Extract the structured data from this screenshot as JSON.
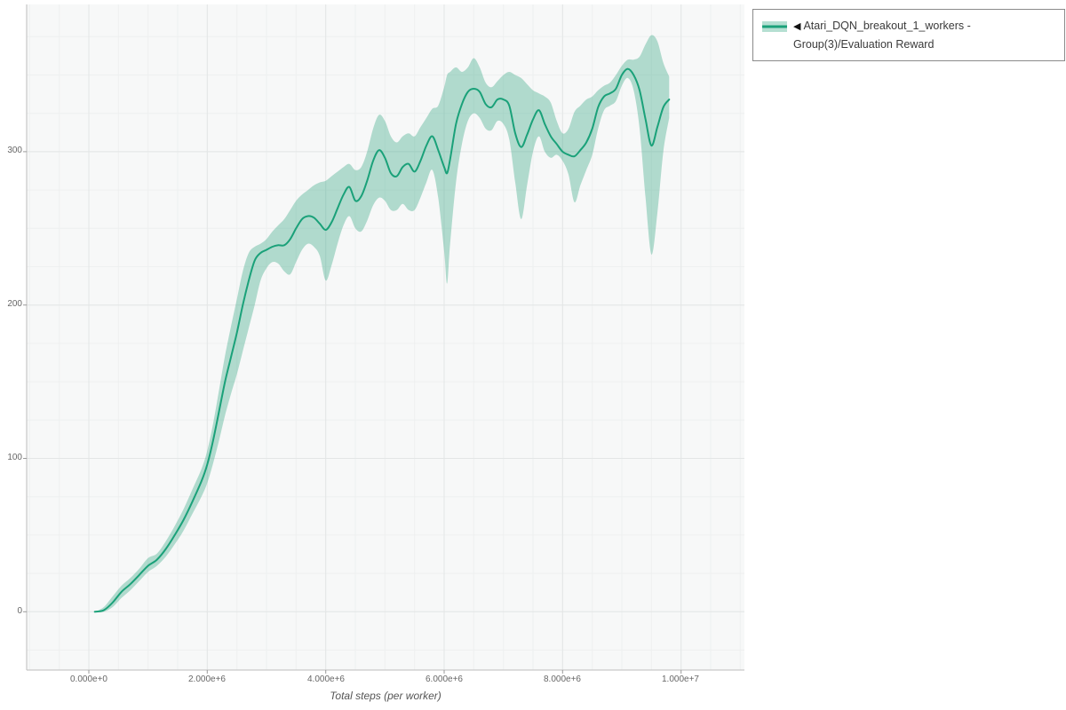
{
  "figure": {
    "legend": {
      "marker": "◀",
      "label": "Atari_DQN_breakout_1_workers - Group(3)/Evaluation Reward"
    },
    "x_axis": {
      "label": "Total steps (per worker)",
      "ticks": [
        "0.000e+0",
        "2.000e+6",
        "4.000e+6",
        "6.000e+6",
        "8.000e+6",
        "1.000e+7"
      ]
    },
    "y_axis": {
      "ticks": [
        "0",
        "100",
        "200",
        "300"
      ]
    },
    "colors": {
      "line": "#1aa179",
      "band": "rgba(44,163,127,0.35)",
      "plot_bg": "#f7f8f8",
      "grid_minor": "#eef0f0",
      "grid_major": "#e3e6e6",
      "axis": "#bdbdbd",
      "tick": "#999999",
      "text": "#666666"
    }
  },
  "chart_data": {
    "type": "line",
    "title": "",
    "xlabel": "Total steps (per worker)",
    "ylabel": "",
    "x_unit": "steps, values in millions (axis labels shown in scientific notation)",
    "xlim": [
      -1.05,
      11.07
    ],
    "ylim": [
      -38,
      396
    ],
    "x_ticks_values": [
      0,
      2,
      4,
      6,
      8,
      10
    ],
    "y_ticks_values": [
      0,
      100,
      200,
      300
    ],
    "grid": true,
    "legend_position": "top-right-outside",
    "series": [
      {
        "name": "Atari_DQN_breakout_1_workers - Group(3)/Evaluation Reward",
        "has_band": true,
        "x": [
          0.1,
          0.25,
          0.4,
          0.55,
          0.7,
          0.85,
          1.0,
          1.15,
          1.3,
          1.45,
          1.6,
          1.75,
          1.9,
          2.0,
          2.1,
          2.2,
          2.3,
          2.4,
          2.5,
          2.6,
          2.7,
          2.8,
          2.9,
          3.0,
          3.1,
          3.2,
          3.3,
          3.4,
          3.5,
          3.6,
          3.7,
          3.8,
          3.9,
          4.0,
          4.1,
          4.2,
          4.3,
          4.4,
          4.5,
          4.6,
          4.7,
          4.8,
          4.9,
          5.0,
          5.1,
          5.2,
          5.3,
          5.4,
          5.5,
          5.6,
          5.7,
          5.8,
          5.9,
          6.0,
          6.05,
          6.1,
          6.2,
          6.3,
          6.4,
          6.5,
          6.6,
          6.7,
          6.8,
          6.9,
          7.0,
          7.1,
          7.2,
          7.3,
          7.4,
          7.5,
          7.6,
          7.7,
          7.8,
          7.9,
          8.0,
          8.1,
          8.2,
          8.3,
          8.4,
          8.5,
          8.6,
          8.7,
          8.8,
          8.9,
          9.0,
          9.1,
          9.2,
          9.3,
          9.4,
          9.5,
          9.6,
          9.7,
          9.8
        ],
        "mean": [
          0,
          1,
          6,
          13,
          18,
          24,
          30,
          34,
          41,
          50,
          60,
          72,
          85,
          96,
          112,
          131,
          150,
          166,
          182,
          200,
          216,
          229,
          234,
          236,
          238,
          239,
          239,
          243,
          250,
          256,
          258,
          257,
          253,
          249,
          254,
          263,
          272,
          277,
          268,
          271,
          281,
          294,
          301,
          296,
          286,
          284,
          290,
          292,
          287,
          294,
          304,
          310,
          301,
          290,
          286,
          295,
          318,
          331,
          339,
          341,
          339,
          331,
          329,
          334,
          334,
          330,
          312,
          303,
          311,
          321,
          327,
          318,
          310,
          305,
          300,
          298,
          297,
          301,
          306,
          315,
          329,
          336,
          338,
          341,
          350,
          354,
          350,
          340,
          321,
          304,
          316,
          329,
          334
        ],
        "lower": [
          0,
          0,
          3,
          9,
          14,
          20,
          26,
          30,
          36,
          44,
          53,
          64,
          75,
          84,
          97,
          112,
          128,
          142,
          155,
          170,
          185,
          200,
          216,
          224,
          228,
          227,
          222,
          220,
          228,
          236,
          240,
          238,
          232,
          216,
          226,
          240,
          252,
          258,
          250,
          248,
          255,
          265,
          270,
          268,
          262,
          262,
          266,
          262,
          262,
          270,
          280,
          288,
          270,
          235,
          214,
          240,
          280,
          305,
          320,
          325,
          322,
          315,
          314,
          320,
          318,
          308,
          280,
          256,
          278,
          300,
          310,
          300,
          296,
          298,
          294,
          285,
          267,
          278,
          288,
          298,
          315,
          327,
          330,
          333,
          343,
          348,
          340,
          315,
          270,
          233,
          260,
          300,
          322
        ],
        "upper": [
          0,
          3,
          10,
          17,
          22,
          28,
          35,
          38,
          46,
          56,
          67,
          80,
          93,
          105,
          123,
          145,
          167,
          186,
          204,
          222,
          234,
          238,
          240,
          243,
          248,
          252,
          256,
          262,
          268,
          272,
          275,
          278,
          280,
          281,
          284,
          287,
          290,
          292,
          288,
          290,
          300,
          315,
          324,
          320,
          310,
          306,
          310,
          312,
          310,
          316,
          322,
          328,
          330,
          342,
          350,
          352,
          355,
          352,
          355,
          361,
          355,
          345,
          342,
          346,
          350,
          352,
          350,
          348,
          344,
          340,
          338,
          336,
          332,
          320,
          312,
          315,
          326,
          330,
          334,
          336,
          340,
          343,
          345,
          350,
          356,
          360,
          360,
          362,
          370,
          376,
          372,
          358,
          349
        ]
      }
    ]
  }
}
